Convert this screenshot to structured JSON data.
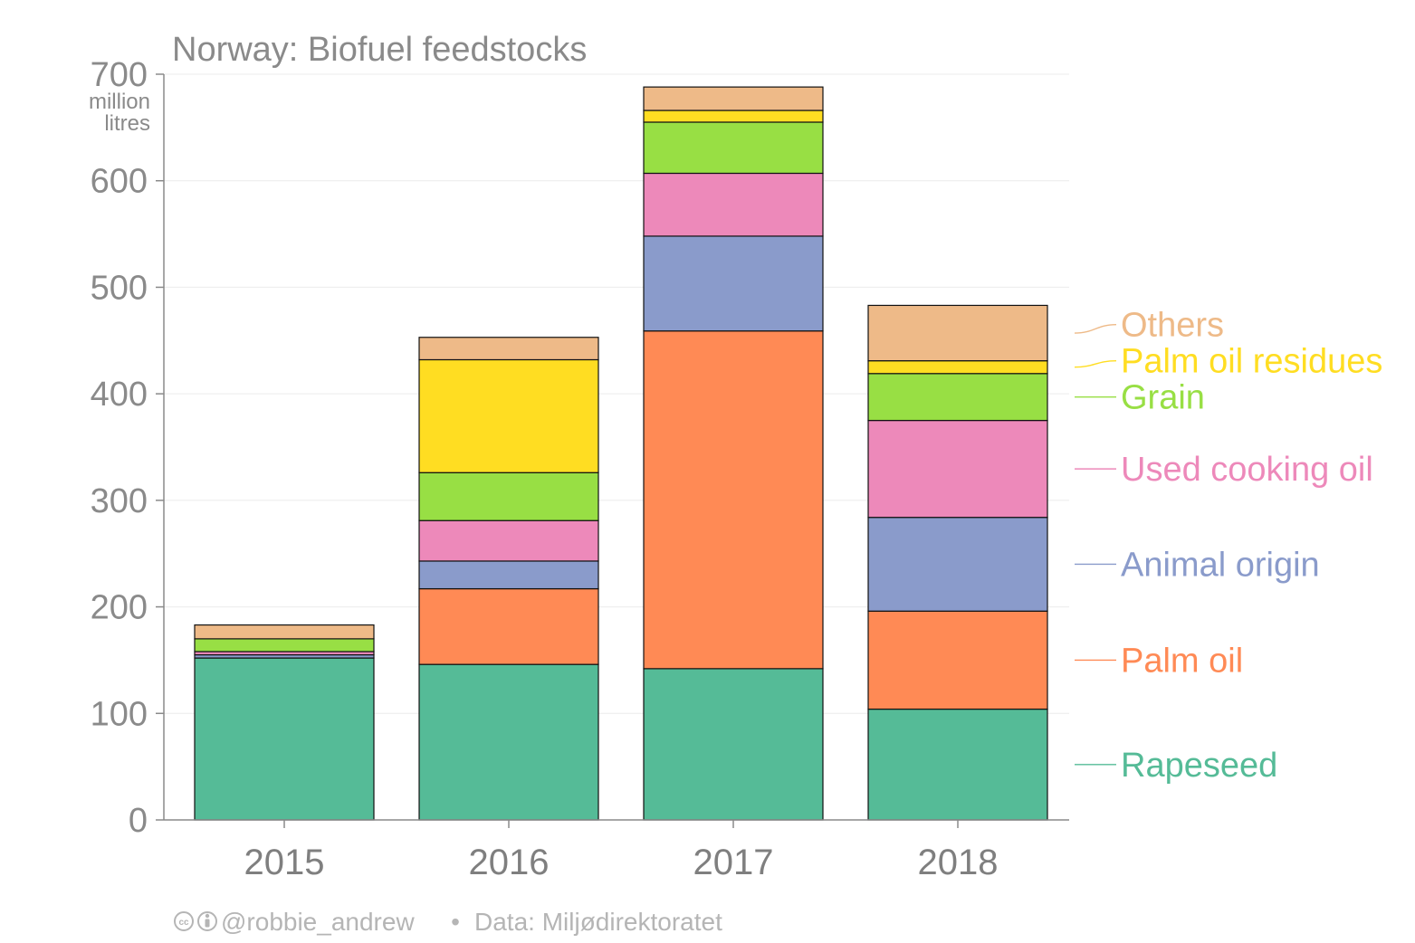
{
  "chart_data": {
    "type": "bar",
    "stacked": true,
    "title": "Norway: Biofuel feedstocks",
    "ylabel": "million litres",
    "ylabel_lines": [
      "million",
      "litres"
    ],
    "ylim": [
      0,
      700
    ],
    "yticks": [
      0,
      100,
      200,
      300,
      400,
      500,
      600,
      700
    ],
    "categories": [
      "2015",
      "2016",
      "2017",
      "2018"
    ],
    "grid": true,
    "legend_placement": "right",
    "series": [
      {
        "name": "Rapeseed",
        "color": "#55bb97",
        "values": [
          152,
          146,
          142,
          104
        ]
      },
      {
        "name": "Palm oil",
        "color": "#ff8a55",
        "values": [
          0,
          71,
          317,
          92
        ]
      },
      {
        "name": "Animal origin",
        "color": "#8a9bcb",
        "values": [
          3,
          26,
          89,
          88
        ]
      },
      {
        "name": "Used cooking oil",
        "color": "#ed89ba",
        "values": [
          3,
          38,
          59,
          91
        ]
      },
      {
        "name": "Grain",
        "color": "#98df44",
        "values": [
          12,
          45,
          48,
          44
        ]
      },
      {
        "name": "Palm oil residues",
        "color": "#ffdd22",
        "values": [
          0,
          106,
          11,
          12
        ]
      },
      {
        "name": "Others",
        "color": "#eeba88",
        "values": [
          13,
          21,
          22,
          52
        ]
      }
    ]
  },
  "credit": {
    "author": "@robbie_andrew",
    "separator": "•",
    "source": "Data: Miljødirektoratet"
  }
}
